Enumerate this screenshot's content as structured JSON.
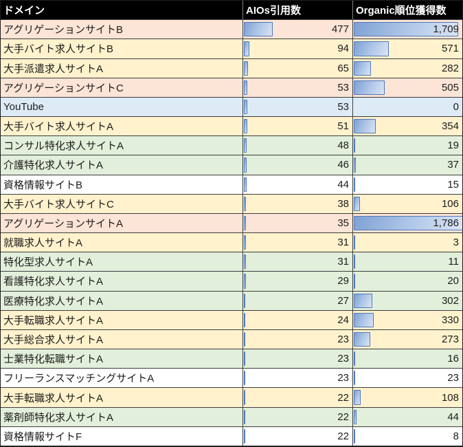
{
  "chart_data": {
    "type": "table",
    "columns": [
      "ドメイン",
      "AIOs引用数",
      "Organic順位獲得数"
    ],
    "bar_scale_max": 1786,
    "legend": "data bars in both numeric columns share one scale (0 to 1786)",
    "rows": [
      {
        "domain": "アグリゲーションサイトB",
        "aios": 477,
        "organic": 1709,
        "row_color": "pink"
      },
      {
        "domain": "大手バイト求人サイトB",
        "aios": 94,
        "organic": 571,
        "row_color": "yellow"
      },
      {
        "domain": "大手派遣求人サイトA",
        "aios": 65,
        "organic": 282,
        "row_color": "yellow"
      },
      {
        "domain": "アグリゲーションサイトC",
        "aios": 53,
        "organic": 505,
        "row_color": "pink"
      },
      {
        "domain": "YouTube",
        "aios": 53,
        "organic": 0,
        "row_color": "blue"
      },
      {
        "domain": "大手バイト求人サイトA",
        "aios": 51,
        "organic": 354,
        "row_color": "yellow"
      },
      {
        "domain": "コンサル特化求人サイトA",
        "aios": 48,
        "organic": 19,
        "row_color": "green"
      },
      {
        "domain": "介護特化求人サイトA",
        "aios": 46,
        "organic": 37,
        "row_color": "green"
      },
      {
        "domain": "資格情報サイトB",
        "aios": 44,
        "organic": 15,
        "row_color": "white"
      },
      {
        "domain": "大手バイト求人サイトC",
        "aios": 38,
        "organic": 106,
        "row_color": "yellow"
      },
      {
        "domain": "アグリゲーションサイトA",
        "aios": 35,
        "organic": 1786,
        "row_color": "pink"
      },
      {
        "domain": "就職求人サイトA",
        "aios": 31,
        "organic": 3,
        "row_color": "yellow"
      },
      {
        "domain": "特化型求人サイトA",
        "aios": 31,
        "organic": 11,
        "row_color": "green"
      },
      {
        "domain": "看護特化求人サイトA",
        "aios": 29,
        "organic": 20,
        "row_color": "green"
      },
      {
        "domain": "医療特化求人サイトA",
        "aios": 27,
        "organic": 302,
        "row_color": "green"
      },
      {
        "domain": "大手転職求人サイトA",
        "aios": 24,
        "organic": 330,
        "row_color": "yellow"
      },
      {
        "domain": "大手総合求人サイトA",
        "aios": 23,
        "organic": 273,
        "row_color": "yellow"
      },
      {
        "domain": "士業特化転職サイトA",
        "aios": 23,
        "organic": 16,
        "row_color": "green"
      },
      {
        "domain": "フリーランスマッチングサイトA",
        "aios": 23,
        "organic": 23,
        "row_color": "white"
      },
      {
        "domain": "大手転職求人サイトA",
        "aios": 22,
        "organic": 108,
        "row_color": "yellow"
      },
      {
        "domain": "薬剤師特化求人サイトA",
        "aios": 22,
        "organic": 44,
        "row_color": "green"
      },
      {
        "domain": "資格情報サイトF",
        "aios": 22,
        "organic": 8,
        "row_color": "white"
      }
    ]
  },
  "colors": {
    "header_bg": "#000000",
    "header_text": "#FFFFFF",
    "grid": "#3D3D3D",
    "grid_dark": "#1F1F1F",
    "bar_border": "#4F79B8",
    "bar_gradient_start": "#7EA0D3",
    "bar_gradient_end": "#DBE5F5",
    "row_fills": {
      "pink": "#FCE4D6",
      "yellow": "#FFF2CC",
      "blue": "#DDEBF7",
      "green": "#E2EFDA",
      "white": "#FFFFFF"
    }
  }
}
